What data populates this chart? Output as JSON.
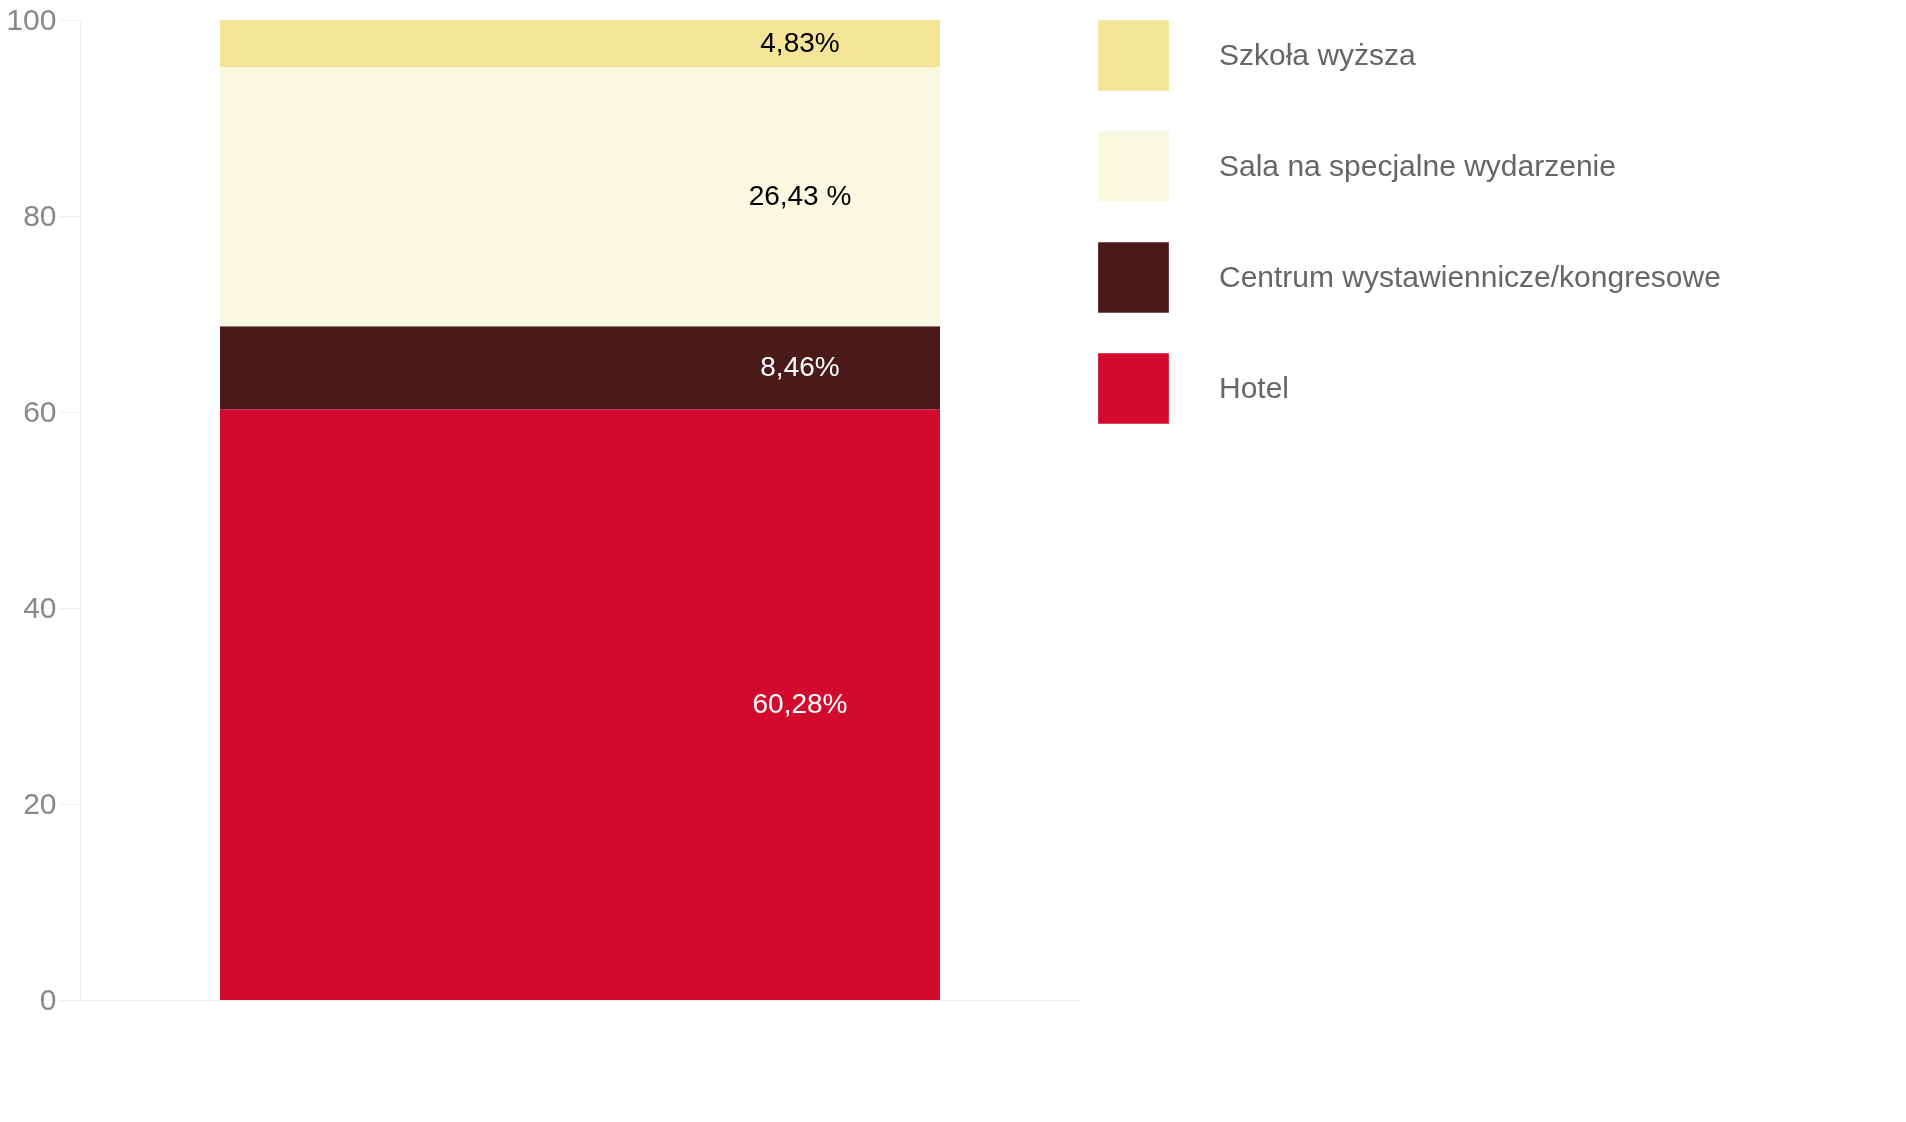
{
  "chart_data": {
    "type": "bar",
    "stacked": true,
    "categories": [
      null
    ],
    "series": [
      {
        "name": "Hotel",
        "color": "#d20a2e",
        "values": [
          60.28
        ],
        "value_labels": [
          "60,28%"
        ]
      },
      {
        "name": "Centrum wystawiennicze/kongresowe",
        "color": "#4a1a1a",
        "values": [
          8.46
        ],
        "value_labels": [
          "8,46%"
        ]
      },
      {
        "name": "Sala na specjalne wydarzenie",
        "color": "#f9f8e1",
        "values": [
          26.43
        ],
        "value_labels": [
          "26,43 %"
        ]
      },
      {
        "name": "Szkoła wyższa",
        "color": "#f3e497",
        "values": [
          4.83
        ],
        "value_labels": [
          "4,83%"
        ]
      }
    ],
    "ylim": [
      0,
      100
    ],
    "yticks": [
      0,
      20,
      40,
      60,
      80,
      100
    ],
    "grid": false,
    "legend": "right"
  }
}
